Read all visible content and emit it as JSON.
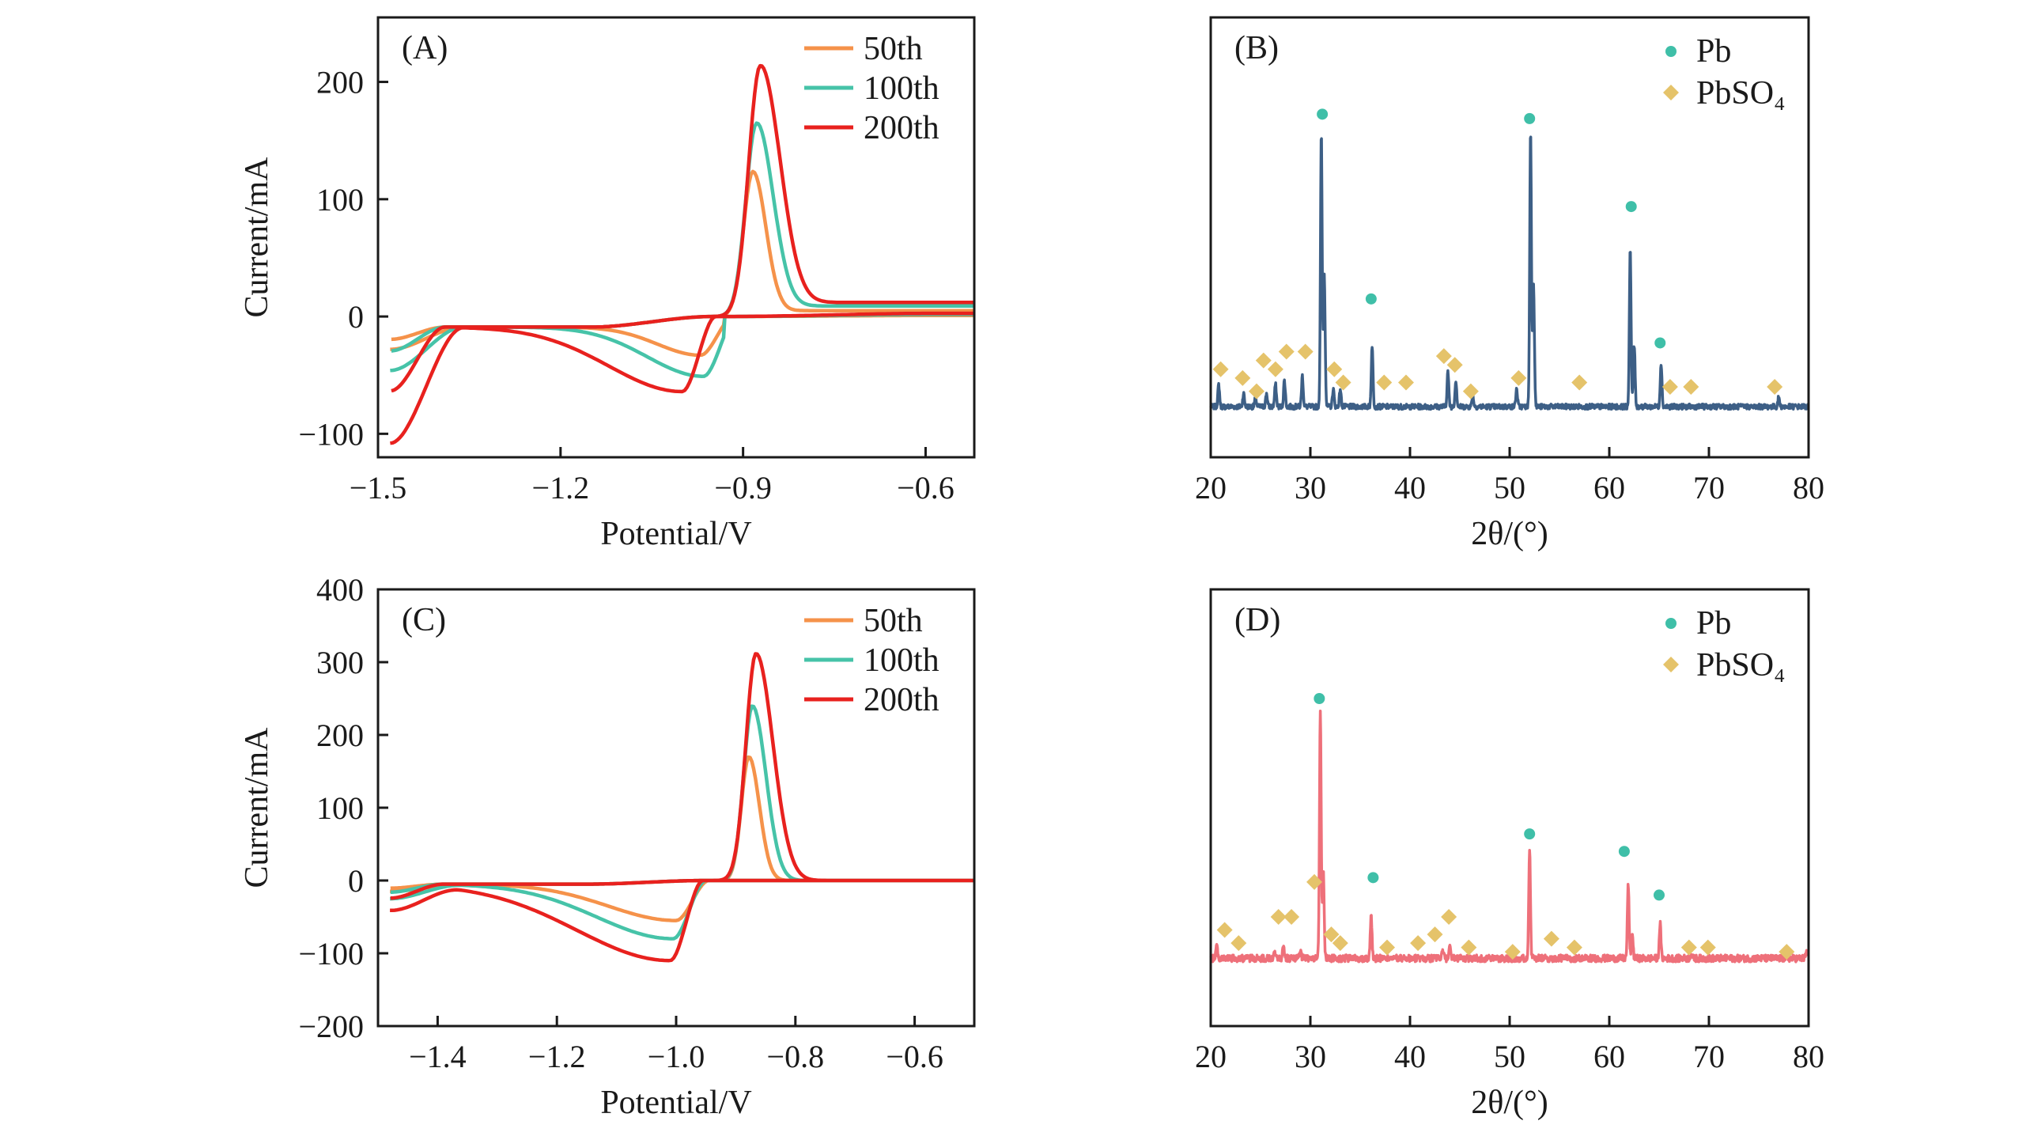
{
  "colors": {
    "c50": "#F5924A",
    "c100": "#46C3A8",
    "c200": "#E8211E",
    "xrd_b": "#3D5F86",
    "xrd_d": "#EE707A",
    "pb_marker": "#3FBFA8",
    "pbso4_marker": "#E5C36A"
  },
  "chart_data": [
    {
      "panel": "A",
      "type": "line",
      "label": "(A)",
      "xlabel": "Potential/V",
      "ylabel": "Current/mA",
      "xlim": [
        -1.5,
        -0.52
      ],
      "ylim": [
        -120,
        255
      ],
      "xticks": [
        -1.5,
        -1.2,
        -0.9,
        -0.6
      ],
      "xtick_labels": [
        "−1.5",
        "−1.2",
        "−0.9",
        "−0.6"
      ],
      "yticks": [
        -100,
        0,
        100,
        200
      ],
      "ytick_labels": [
        "−100",
        "0",
        "100",
        "200"
      ],
      "legend": [
        "50th",
        "100th",
        "200th"
      ],
      "legend_position": "top-right",
      "series": [
        {
          "name": "50th",
          "ox": -0.884,
          "oamp": 122,
          "ow": 0.022,
          "owr": 0.03,
          "rx": -0.97,
          "ramp": -24,
          "rw": 0.1,
          "start": -28,
          "base_left": -9,
          "base_right": 3,
          "upper_end": 5,
          "color_key": "c50"
        },
        {
          "name": "100th",
          "ox": -0.878,
          "oamp": 162,
          "ow": 0.025,
          "owr": 0.038,
          "rx": -0.965,
          "ramp": -42,
          "rw": 0.13,
          "start": -46,
          "base_left": -9,
          "base_right": 6,
          "upper_end": 9,
          "color_key": "c100"
        },
        {
          "name": "200th",
          "ox": -0.872,
          "oamp": 210,
          "ow": 0.027,
          "owr": 0.045,
          "rx": -1.0,
          "ramp": -55,
          "rw": 0.17,
          "start": -108,
          "base_left": -9,
          "base_right": 9,
          "upper_end": 12,
          "color_key": "c200"
        }
      ]
    },
    {
      "panel": "C",
      "type": "line",
      "label": "(C)",
      "xlabel": "Potential/V",
      "ylabel": "Current/mA",
      "xlim": [
        -1.5,
        -0.5
      ],
      "ylim": [
        -200,
        400
      ],
      "xticks": [
        -1.4,
        -1.2,
        -1.0,
        -0.8,
        -0.6
      ],
      "xtick_labels": [
        "−1.4",
        "−1.2",
        "−1.0",
        "−0.8",
        "−0.6"
      ],
      "yticks": [
        -200,
        -100,
        0,
        100,
        200,
        300,
        400
      ],
      "ytick_labels": [
        "−200",
        "−100",
        "0",
        "100",
        "200",
        "300",
        "400"
      ],
      "legend": [
        "50th",
        "100th",
        "200th"
      ],
      "legend_position": "top-right",
      "series": [
        {
          "name": "50th",
          "ox": -0.878,
          "oamp": 170,
          "ow": 0.018,
          "owr": 0.025,
          "rx": -1.0,
          "ramp": -50,
          "rw": 0.16,
          "start": -15,
          "base_left": -5,
          "base_right": 0,
          "upper_end": 0,
          "color_key": "c50"
        },
        {
          "name": "100th",
          "ox": -0.872,
          "oamp": 240,
          "ow": 0.021,
          "owr": 0.032,
          "rx": -1.005,
          "ramp": -75,
          "rw": 0.18,
          "start": -25,
          "base_left": -5,
          "base_right": 0,
          "upper_end": 0,
          "color_key": "c100"
        },
        {
          "name": "200th",
          "ox": -0.866,
          "oamp": 312,
          "ow": 0.024,
          "owr": 0.04,
          "rx": -1.01,
          "ramp": -105,
          "rw": 0.22,
          "start": -40,
          "base_left": -5,
          "base_right": 0,
          "upper_end": 0,
          "color_key": "c200"
        }
      ]
    },
    {
      "panel": "B",
      "type": "line",
      "label": "(B)",
      "xlabel": "2θ/(°)",
      "ylabel": "",
      "xlim": [
        20,
        80
      ],
      "ylim": [
        0,
        1
      ],
      "xticks": [
        20,
        30,
        40,
        50,
        60,
        70,
        80
      ],
      "xtick_labels": [
        "20",
        "30",
        "40",
        "50",
        "60",
        "70",
        "80"
      ],
      "yticks": [],
      "legend": [
        "Pb",
        "PbSO₄"
      ],
      "legend_position": "top-right",
      "baseline": 0.115,
      "noise": 0.006,
      "peaks": [
        [
          20.8,
          0.05
        ],
        [
          23.3,
          0.03
        ],
        [
          24.5,
          0.02
        ],
        [
          25.6,
          0.03
        ],
        [
          26.5,
          0.05
        ],
        [
          27.4,
          0.06
        ],
        [
          29.2,
          0.07
        ],
        [
          31.1,
          0.62
        ],
        [
          31.4,
          0.3
        ],
        [
          32.3,
          0.04
        ],
        [
          33.0,
          0.04
        ],
        [
          36.2,
          0.14
        ],
        [
          43.8,
          0.08
        ],
        [
          44.6,
          0.06
        ],
        [
          46.3,
          0.025
        ],
        [
          50.7,
          0.04
        ],
        [
          52.1,
          0.63
        ],
        [
          52.4,
          0.28
        ],
        [
          62.1,
          0.36
        ],
        [
          62.5,
          0.14
        ],
        [
          65.2,
          0.1
        ],
        [
          77.0,
          0.02
        ]
      ],
      "pb_markers": [
        [
          31.2,
          0.78
        ],
        [
          36.1,
          0.36
        ],
        [
          52.0,
          0.77
        ],
        [
          62.2,
          0.57
        ],
        [
          65.1,
          0.26
        ]
      ],
      "pbso4_markers": [
        [
          21.0,
          0.2
        ],
        [
          23.2,
          0.18
        ],
        [
          24.6,
          0.15
        ],
        [
          25.3,
          0.22
        ],
        [
          26.5,
          0.2
        ],
        [
          27.6,
          0.24
        ],
        [
          29.5,
          0.24
        ],
        [
          32.4,
          0.2
        ],
        [
          33.3,
          0.17
        ],
        [
          37.4,
          0.17
        ],
        [
          39.6,
          0.17
        ],
        [
          43.4,
          0.23
        ],
        [
          44.5,
          0.21
        ],
        [
          46.1,
          0.15
        ],
        [
          50.9,
          0.18
        ],
        [
          57.0,
          0.17
        ],
        [
          66.1,
          0.16
        ],
        [
          68.2,
          0.16
        ],
        [
          76.6,
          0.16
        ]
      ]
    },
    {
      "panel": "D",
      "type": "line",
      "label": "(D)",
      "xlabel": "2θ/(°)",
      "ylabel": "",
      "xlim": [
        20,
        80
      ],
      "ylim": [
        0,
        1
      ],
      "xticks": [
        20,
        30,
        40,
        50,
        60,
        70,
        80
      ],
      "xtick_labels": [
        "20",
        "30",
        "40",
        "50",
        "60",
        "70",
        "80"
      ],
      "yticks": [],
      "legend": [
        "Pb",
        "PbSO₄"
      ],
      "legend_position": "top-right",
      "baseline": 0.155,
      "noise": 0.008,
      "peaks": [
        [
          20.6,
          0.03
        ],
        [
          26.4,
          0.02
        ],
        [
          27.3,
          0.025
        ],
        [
          29.0,
          0.015
        ],
        [
          31.0,
          0.57
        ],
        [
          31.3,
          0.2
        ],
        [
          36.1,
          0.1
        ],
        [
          43.3,
          0.02
        ],
        [
          44.0,
          0.03
        ],
        [
          52.0,
          0.25
        ],
        [
          61.9,
          0.17
        ],
        [
          62.3,
          0.06
        ],
        [
          65.1,
          0.08
        ],
        [
          68.2,
          0.01
        ],
        [
          79.8,
          0.015
        ]
      ],
      "pb_markers": [
        [
          30.9,
          0.75
        ],
        [
          36.3,
          0.34
        ],
        [
          52.0,
          0.44
        ],
        [
          61.5,
          0.4
        ],
        [
          65.0,
          0.3
        ]
      ],
      "pbso4_markers": [
        [
          21.4,
          0.22
        ],
        [
          22.8,
          0.19
        ],
        [
          26.8,
          0.25
        ],
        [
          28.1,
          0.25
        ],
        [
          30.4,
          0.33
        ],
        [
          32.1,
          0.21
        ],
        [
          33.0,
          0.19
        ],
        [
          37.7,
          0.18
        ],
        [
          40.8,
          0.19
        ],
        [
          42.5,
          0.21
        ],
        [
          43.9,
          0.25
        ],
        [
          45.9,
          0.18
        ],
        [
          50.3,
          0.17
        ],
        [
          54.2,
          0.2
        ],
        [
          56.5,
          0.18
        ],
        [
          68.0,
          0.18
        ],
        [
          69.9,
          0.18
        ],
        [
          77.8,
          0.17
        ]
      ]
    }
  ]
}
